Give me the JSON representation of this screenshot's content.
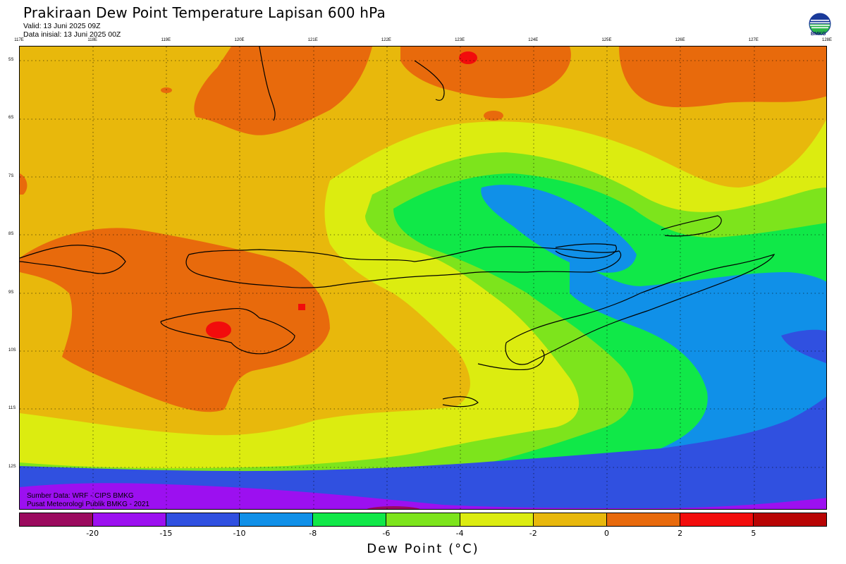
{
  "header": {
    "title": "Prakiraan Dew Point Temperature Lapisan 600 hPa",
    "valid": "Valid: 13 Juni 2025 09Z",
    "initial": "Data inisial: 13 Juni 2025 00Z"
  },
  "logo": {
    "text": "BMKG",
    "icon": "bmkg-logo-icon"
  },
  "axes": {
    "x_ticks": [
      "117E",
      "118E",
      "119E",
      "120E",
      "121E",
      "122E",
      "123E",
      "124E",
      "125E",
      "126E",
      "127E",
      "128E"
    ],
    "y_ticks": [
      "5S",
      "6S",
      "7S",
      "8S",
      "9S",
      "10S",
      "11S",
      "12S"
    ]
  },
  "credits": {
    "line1": "Sumber Data: WRF - CIPS BMKG",
    "line2": "Pusat Meteorologi Publik BMKG - 2021"
  },
  "legend": {
    "colors": [
      "#9b0a5e",
      "#9c10f0",
      "#3050e0",
      "#1090e8",
      "#10e848",
      "#7de41c",
      "#dcec10",
      "#e8b80c",
      "#e86a0c",
      "#f20c0c",
      "#b80404"
    ],
    "labels": [
      "-20",
      "-15",
      "-10",
      "-8",
      "-6",
      "-4",
      "-2",
      "0",
      "2",
      "5"
    ],
    "units": "Dew Point (°C)"
  },
  "map": {
    "region": "Nusa Tenggara, Indonesia",
    "field_colors": {
      "dark_orange": "#e86a0c",
      "orange": "#e8b80c",
      "yellow": "#dcec10",
      "yellow_green": "#7de41c",
      "green": "#10e848",
      "light_blue": "#1090e8",
      "blue": "#3050e0",
      "purple": "#9c10f0",
      "magenta": "#9b0a5e",
      "red": "#f20c0c"
    }
  }
}
